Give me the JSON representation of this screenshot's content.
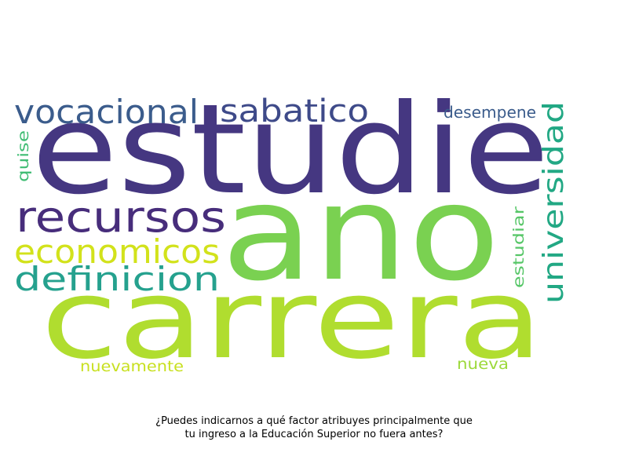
{
  "caption": {
    "line1": "¿Puedes indicarnos a qué factor atribuyes principalmente que",
    "line2": "tu ingreso a la Educación Superior no fuera antes?"
  },
  "words": [
    {
      "text": "estudie",
      "color": "#453781"
    },
    {
      "text": "ano",
      "color": "#7AD151"
    },
    {
      "text": "carrera",
      "color": "#B0DD2F"
    },
    {
      "text": "vocacional",
      "color": "#3B5C8C"
    },
    {
      "text": "sabatico",
      "color": "#3E4A89"
    },
    {
      "text": "desempene",
      "color": "#3B5C8C"
    },
    {
      "text": "universidad",
      "color": "#22A884"
    },
    {
      "text": "recursos",
      "color": "#472D7B"
    },
    {
      "text": "economicos",
      "color": "#D2E21B"
    },
    {
      "text": "definicion",
      "color": "#25A18E"
    },
    {
      "text": "quise",
      "color": "#3FBC73"
    },
    {
      "text": "estudiar",
      "color": "#56C667"
    },
    {
      "text": "nuevamente",
      "color": "#C8E020"
    },
    {
      "text": "nueva",
      "color": "#9CD93B"
    }
  ]
}
